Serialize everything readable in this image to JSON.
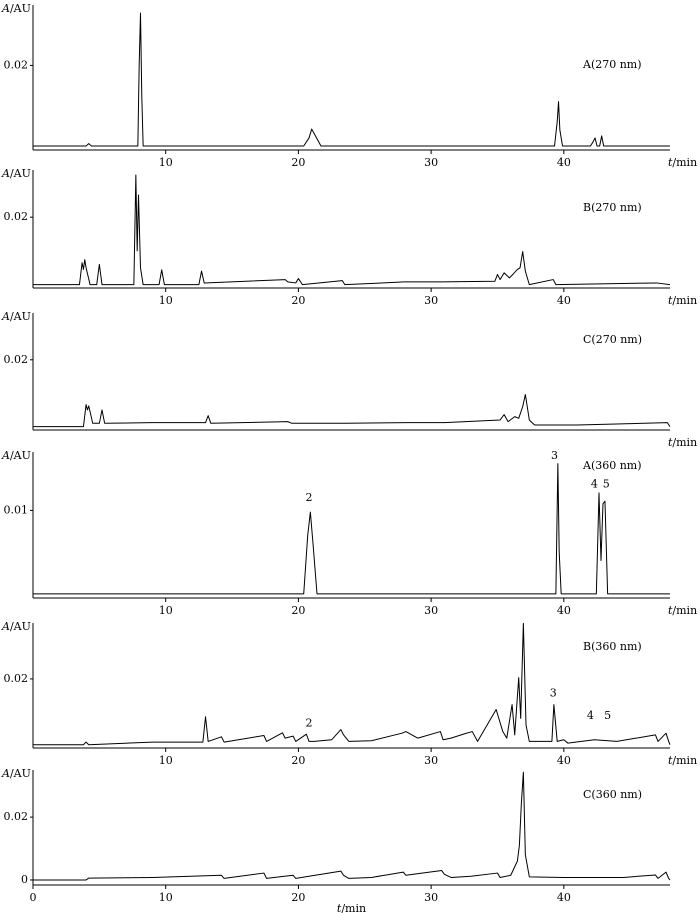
{
  "chart_data": [
    {
      "type": "line",
      "title": "A(270 nm)",
      "ylabel": "A/AU",
      "xlabel": "t/min",
      "xlabel_position": "right",
      "color": "#000000",
      "xlim": [
        0,
        48
      ],
      "ylim": [
        -0.001,
        0.035
      ],
      "xticks": [
        10,
        20,
        30,
        40
      ],
      "yticks": [
        0.02
      ],
      "x": [
        0,
        4.0,
        4.2,
        4.4,
        7.9,
        8.0,
        8.1,
        8.2,
        8.3,
        20.4,
        20.8,
        21.0,
        21.2,
        21.7,
        39.3,
        39.5,
        39.6,
        39.7,
        39.9,
        42.0,
        42.2,
        42.35,
        42.5,
        42.7,
        42.85,
        43.0,
        48
      ],
      "values": [
        0,
        0,
        0.0006,
        0,
        0,
        0.02,
        0.033,
        0.012,
        0,
        0,
        0.002,
        0.0042,
        0.003,
        0,
        0,
        0.006,
        0.011,
        0.004,
        0,
        0,
        0.001,
        0.002,
        0,
        0,
        0.0025,
        0,
        0
      ]
    },
    {
      "type": "line",
      "title": "B(270 nm)",
      "ylabel": "A/AU",
      "xlabel": "t/min",
      "xlabel_position": "right",
      "color": "#000000",
      "xlim": [
        0,
        48
      ],
      "ylim": [
        -0.001,
        0.034
      ],
      "xticks": [
        10,
        20,
        30,
        40
      ],
      "yticks": [
        0.02
      ],
      "x": [
        0,
        3.5,
        3.7,
        3.8,
        3.9,
        4.0,
        4.3,
        4.8,
        5.0,
        5.2,
        7.6,
        7.75,
        7.85,
        7.95,
        8.1,
        8.3,
        9.5,
        9.7,
        9.9,
        12.5,
        12.7,
        12.9,
        19.0,
        19.2,
        19.8,
        20.0,
        20.3,
        23.3,
        23.5,
        28.0,
        30.8,
        34.8,
        35.0,
        35.2,
        35.5,
        35.9,
        36.2,
        36.5,
        36.7,
        36.9,
        37.1,
        37.4,
        39.2,
        39.4,
        47,
        48
      ],
      "values": [
        0,
        0,
        0.0065,
        0.0045,
        0.0074,
        0.005,
        0,
        0,
        0.006,
        0,
        0,
        0.0325,
        0.01,
        0.0266,
        0.005,
        0,
        0,
        0.0044,
        0,
        0,
        0.004,
        0.0005,
        0.0015,
        0.0008,
        0.0005,
        0.0018,
        0,
        0.0012,
        0,
        0.0008,
        0.0008,
        0.001,
        0.003,
        0.0015,
        0.0035,
        0.002,
        0.0032,
        0.0045,
        0.005,
        0.0098,
        0.004,
        0,
        0.0015,
        0,
        0.0005,
        0
      ]
    },
    {
      "type": "line",
      "title": "C(270 nm)",
      "ylabel": "A/AU",
      "xlabel": "t/min",
      "xlabel_position": "right",
      "color": "#000000",
      "xlim": [
        0,
        48
      ],
      "ylim": [
        -0.001,
        0.034
      ],
      "yticks": [
        0.02
      ],
      "x": [
        0,
        3.8,
        4.0,
        4.1,
        4.2,
        4.5,
        5.0,
        5.2,
        5.4,
        9,
        13.0,
        13.2,
        13.4,
        19.2,
        19.5,
        23.5,
        28.2,
        31.0,
        35.2,
        35.5,
        35.8,
        36.3,
        36.6,
        36.9,
        37.1,
        37.4,
        37.8,
        41,
        47.8,
        48
      ],
      "values": [
        0,
        0,
        0.0066,
        0.005,
        0.0062,
        0.001,
        0.001,
        0.005,
        0.001,
        0.0012,
        0.0012,
        0.0033,
        0.001,
        0.0015,
        0.001,
        0.001,
        0.0012,
        0.0012,
        0.002,
        0.0036,
        0.0015,
        0.003,
        0.0025,
        0.006,
        0.0096,
        0.002,
        0.0005,
        0.0005,
        0.0012,
        0
      ]
    },
    {
      "type": "line",
      "title": "A(360 nm)",
      "ylabel": "A/AU",
      "xlabel": "t/min",
      "xlabel_position": "right",
      "color": "#000000",
      "xlim": [
        0,
        48
      ],
      "ylim": [
        -0.0005,
        0.017
      ],
      "xticks": [
        10,
        20,
        30,
        40
      ],
      "yticks": [
        0.01
      ],
      "x": [
        0,
        20.4,
        20.7,
        20.9,
        21.1,
        21.4,
        39.4,
        39.55,
        39.65,
        39.8,
        42.45,
        42.65,
        42.8,
        42.95,
        43.1,
        43.3,
        48
      ],
      "values": [
        0,
        0,
        0.007,
        0.0098,
        0.006,
        0,
        0,
        0.0156,
        0.005,
        0,
        0,
        0.0121,
        0.004,
        0.0108,
        0.0111,
        0,
        0
      ],
      "annotations": [
        {
          "text": "2",
          "x": 20.8,
          "y": 0.0115
        },
        {
          "text": "3",
          "x": 39.3,
          "y": 0.0165
        },
        {
          "text": "4",
          "x": 42.3,
          "y": 0.0131
        },
        {
          "text": "5",
          "x": 43.2,
          "y": 0.0131
        }
      ]
    },
    {
      "type": "line",
      "title": "B(360 nm)",
      "ylabel": "A/AU",
      "xlabel": "t/min",
      "xlabel_position": "right",
      "color": "#000000",
      "xlim": [
        0,
        48
      ],
      "ylim": [
        -0.001,
        0.037
      ],
      "xticks": [
        10,
        20,
        30,
        40
      ],
      "yticks": [
        0.02
      ],
      "x": [
        0,
        3.8,
        4.0,
        4.2,
        9.0,
        12.8,
        13.0,
        13.2,
        14.2,
        14.4,
        17.4,
        17.6,
        18.8,
        19.0,
        19.6,
        19.8,
        20.6,
        20.8,
        21.2,
        22.5,
        23.2,
        23.4,
        23.8,
        25.5,
        27.8,
        28.1,
        29,
        30.7,
        30.9,
        31.5,
        32.5,
        33.1,
        33.5,
        34.9,
        35.1,
        35.4,
        35.7,
        36.1,
        36.3,
        36.6,
        36.75,
        36.95,
        37.15,
        37.4,
        39.1,
        39.25,
        39.5,
        40.0,
        40.3,
        42.3,
        44,
        46.9,
        47.1,
        47.7,
        47.9,
        48
      ],
      "values": [
        0,
        0,
        0.0008,
        0,
        0.0008,
        0.0008,
        0.0085,
        0.001,
        0.0024,
        0.0008,
        0.0028,
        0.001,
        0.0036,
        0.002,
        0.0026,
        0.001,
        0.0032,
        0.001,
        0.001,
        0.0015,
        0.0046,
        0.003,
        0.001,
        0.0012,
        0.0035,
        0.004,
        0.002,
        0.004,
        0.0015,
        0.002,
        0.0033,
        0.004,
        0.001,
        0.0107,
        0.008,
        0.004,
        0.002,
        0.0122,
        0.003,
        0.0204,
        0.008,
        0.0369,
        0.006,
        0.001,
        0.001,
        0.0122,
        0.001,
        0.0015,
        0.0005,
        0.0015,
        0.001,
        0.003,
        0.001,
        0.0035,
        0.001,
        0
      ],
      "annotations": [
        {
          "text": "2",
          "x": 20.8,
          "y": 0.0065
        },
        {
          "text": "3",
          "x": 39.2,
          "y": 0.0155
        },
        {
          "text": "4",
          "x": 42.0,
          "y": 0.0088
        },
        {
          "text": "5",
          "x": 43.3,
          "y": 0.0088
        }
      ]
    },
    {
      "type": "line",
      "title": "C(360 nm)",
      "ylabel": "A/AU",
      "xlabel": "t/min",
      "xlabel_position": "bottom",
      "color": "#000000",
      "xlim": [
        0,
        48
      ],
      "ylim": [
        -0.0016,
        0.035
      ],
      "xticks": [
        0,
        10,
        20,
        30,
        40
      ],
      "yticks": [
        0,
        0.02
      ],
      "x": [
        0,
        4.0,
        4.2,
        9,
        14.2,
        14.4,
        17.4,
        17.6,
        19.6,
        19.8,
        23.2,
        23.4,
        23.8,
        25.5,
        27.9,
        28.1,
        30.8,
        31.0,
        31.5,
        33,
        35.0,
        35.2,
        36.0,
        36.5,
        36.65,
        36.8,
        36.95,
        37.1,
        37.4,
        40,
        44.5,
        46.9,
        47.1,
        47.7,
        47.9,
        48
      ],
      "values": [
        0,
        0,
        0.0006,
        0.0008,
        0.0015,
        0.0005,
        0.0022,
        0.0005,
        0.0015,
        0.0005,
        0.0028,
        0.0015,
        0.0005,
        0.0008,
        0.0025,
        0.0015,
        0.003,
        0.0018,
        0.0008,
        0.0012,
        0.0022,
        0.0008,
        0.0015,
        0.006,
        0.011,
        0.0244,
        0.0343,
        0.008,
        0.001,
        0.0008,
        0.0008,
        0.0016,
        0.0005,
        0.0025,
        0.0005,
        0
      ]
    }
  ]
}
